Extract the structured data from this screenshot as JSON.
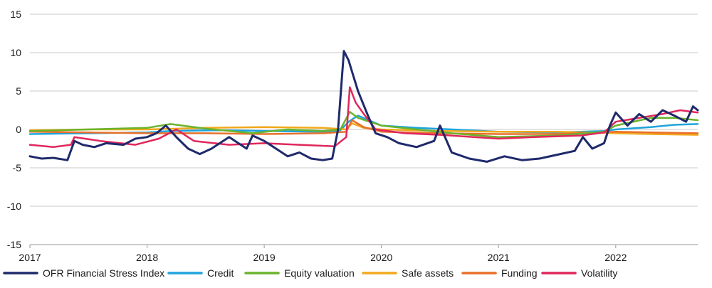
{
  "chart_data": {
    "type": "line",
    "title": "",
    "xlabel": "",
    "ylabel": "",
    "xlim": [
      2017.0,
      2022.7
    ],
    "ylim": [
      -15,
      15
    ],
    "yticks": [
      15,
      10,
      5,
      0,
      -5,
      -10,
      -15
    ],
    "xticks": [
      2017,
      2018,
      2019,
      2020,
      2021,
      2022
    ],
    "grid": "horizontal",
    "legend_position": "bottom",
    "series": [
      {
        "name": "OFR Financial Stress Index",
        "color": "#1f2a6b",
        "x": [
          2017.0,
          2017.1,
          2017.2,
          2017.32,
          2017.38,
          2017.45,
          2017.55,
          2017.65,
          2017.8,
          2017.9,
          2018.0,
          2018.08,
          2018.16,
          2018.25,
          2018.35,
          2018.45,
          2018.55,
          2018.7,
          2018.85,
          2018.9,
          2019.0,
          2019.1,
          2019.2,
          2019.3,
          2019.4,
          2019.5,
          2019.58,
          2019.63,
          2019.68,
          2019.72,
          2019.75,
          2019.8,
          2019.88,
          2019.95,
          2020.05,
          2020.15,
          2020.3,
          2020.45,
          2020.5,
          2020.6,
          2020.75,
          2020.9,
          2021.05,
          2021.2,
          2021.35,
          2021.5,
          2021.65,
          2021.72,
          2021.8,
          2021.9,
          2021.95,
          2022.0,
          2022.1,
          2022.2,
          2022.3,
          2022.4,
          2022.5,
          2022.6,
          2022.66,
          2022.7
        ],
        "values": [
          -3.5,
          -3.8,
          -3.7,
          -4.0,
          -1.5,
          -2.0,
          -2.3,
          -1.8,
          -2.0,
          -1.2,
          -1.0,
          -0.5,
          0.5,
          -1.0,
          -2.5,
          -3.2,
          -2.5,
          -1.0,
          -2.5,
          -0.8,
          -1.5,
          -2.5,
          -3.5,
          -3.0,
          -3.8,
          -4.0,
          -3.8,
          0.0,
          10.2,
          9.0,
          7.5,
          5.0,
          2.0,
          -0.5,
          -1.0,
          -1.8,
          -2.3,
          -1.5,
          0.5,
          -3.0,
          -3.8,
          -4.2,
          -3.5,
          -4.0,
          -3.8,
          -3.3,
          -2.8,
          -1.0,
          -2.5,
          -1.8,
          0.5,
          2.2,
          0.5,
          2.0,
          1.0,
          2.5,
          1.8,
          1.0,
          3.0,
          2.5
        ]
      },
      {
        "name": "Credit",
        "color": "#1ea4dc",
        "x": [
          2017.0,
          2017.5,
          2018.0,
          2018.2,
          2018.6,
          2019.0,
          2019.5,
          2019.65,
          2019.72,
          2019.8,
          2020.0,
          2020.3,
          2020.6,
          2021.0,
          2021.5,
          2021.9,
          2022.0,
          2022.3,
          2022.5,
          2022.7
        ],
        "values": [
          -0.6,
          -0.5,
          -0.4,
          -0.2,
          -0.1,
          -0.2,
          -0.3,
          -0.1,
          1.0,
          1.8,
          0.5,
          0.2,
          0.0,
          -0.3,
          -0.4,
          -0.2,
          0.0,
          0.3,
          0.6,
          0.7
        ]
      },
      {
        "name": "Equity valuation",
        "color": "#6ab42d",
        "x": [
          2017.0,
          2017.5,
          2018.0,
          2018.2,
          2018.5,
          2018.9,
          2019.2,
          2019.5,
          2019.65,
          2019.73,
          2019.8,
          2020.0,
          2020.3,
          2020.6,
          2021.0,
          2021.5,
          2021.9,
          2022.0,
          2022.3,
          2022.5,
          2022.7
        ],
        "values": [
          -0.2,
          0.0,
          0.2,
          0.7,
          0.1,
          -0.5,
          0.0,
          -0.2,
          0.0,
          2.3,
          1.5,
          0.5,
          0.0,
          -0.5,
          -1.0,
          -0.8,
          -0.3,
          0.5,
          1.5,
          1.5,
          1.2
        ]
      },
      {
        "name": "Safe assets",
        "color": "#f2a81d",
        "x": [
          2017.0,
          2017.5,
          2018.0,
          2018.5,
          2019.0,
          2019.5,
          2019.7,
          2019.75,
          2019.85,
          2020.0,
          2020.5,
          2021.0,
          2021.5,
          2022.0,
          2022.3,
          2022.7
        ],
        "values": [
          -0.1,
          0.0,
          0.0,
          0.2,
          0.3,
          0.2,
          0.0,
          0.8,
          0.2,
          0.0,
          -0.2,
          -0.3,
          -0.3,
          -0.5,
          -0.6,
          -0.7
        ]
      },
      {
        "name": "Funding",
        "color": "#e8702a",
        "x": [
          2017.0,
          2017.5,
          2018.0,
          2018.5,
          2019.0,
          2019.5,
          2019.7,
          2019.75,
          2019.85,
          2020.0,
          2020.5,
          2021.0,
          2021.5,
          2022.0,
          2022.3,
          2022.7
        ],
        "values": [
          -0.3,
          -0.4,
          -0.5,
          -0.5,
          -0.6,
          -0.5,
          -0.3,
          1.2,
          0.3,
          -0.3,
          -0.5,
          -0.6,
          -0.6,
          -0.3,
          -0.4,
          -0.5
        ]
      },
      {
        "name": "Volatility",
        "color": "#e0275c",
        "x": [
          2017.0,
          2017.2,
          2017.35,
          2017.38,
          2017.6,
          2017.9,
          2018.1,
          2018.25,
          2018.4,
          2018.7,
          2019.0,
          2019.3,
          2019.6,
          2019.7,
          2019.73,
          2019.78,
          2019.85,
          2019.95,
          2020.2,
          2020.5,
          2021.0,
          2021.3,
          2021.7,
          2021.9,
          2022.0,
          2022.2,
          2022.4,
          2022.55,
          2022.7
        ],
        "values": [
          -2.0,
          -2.3,
          -2.0,
          -1.0,
          -1.5,
          -2.0,
          -1.2,
          0.0,
          -1.5,
          -2.0,
          -1.8,
          -2.0,
          -2.2,
          -1.0,
          5.5,
          3.5,
          2.0,
          0.0,
          -0.5,
          -0.7,
          -1.2,
          -1.0,
          -0.8,
          -0.4,
          1.0,
          1.5,
          2.0,
          2.5,
          2.2
        ]
      }
    ]
  }
}
